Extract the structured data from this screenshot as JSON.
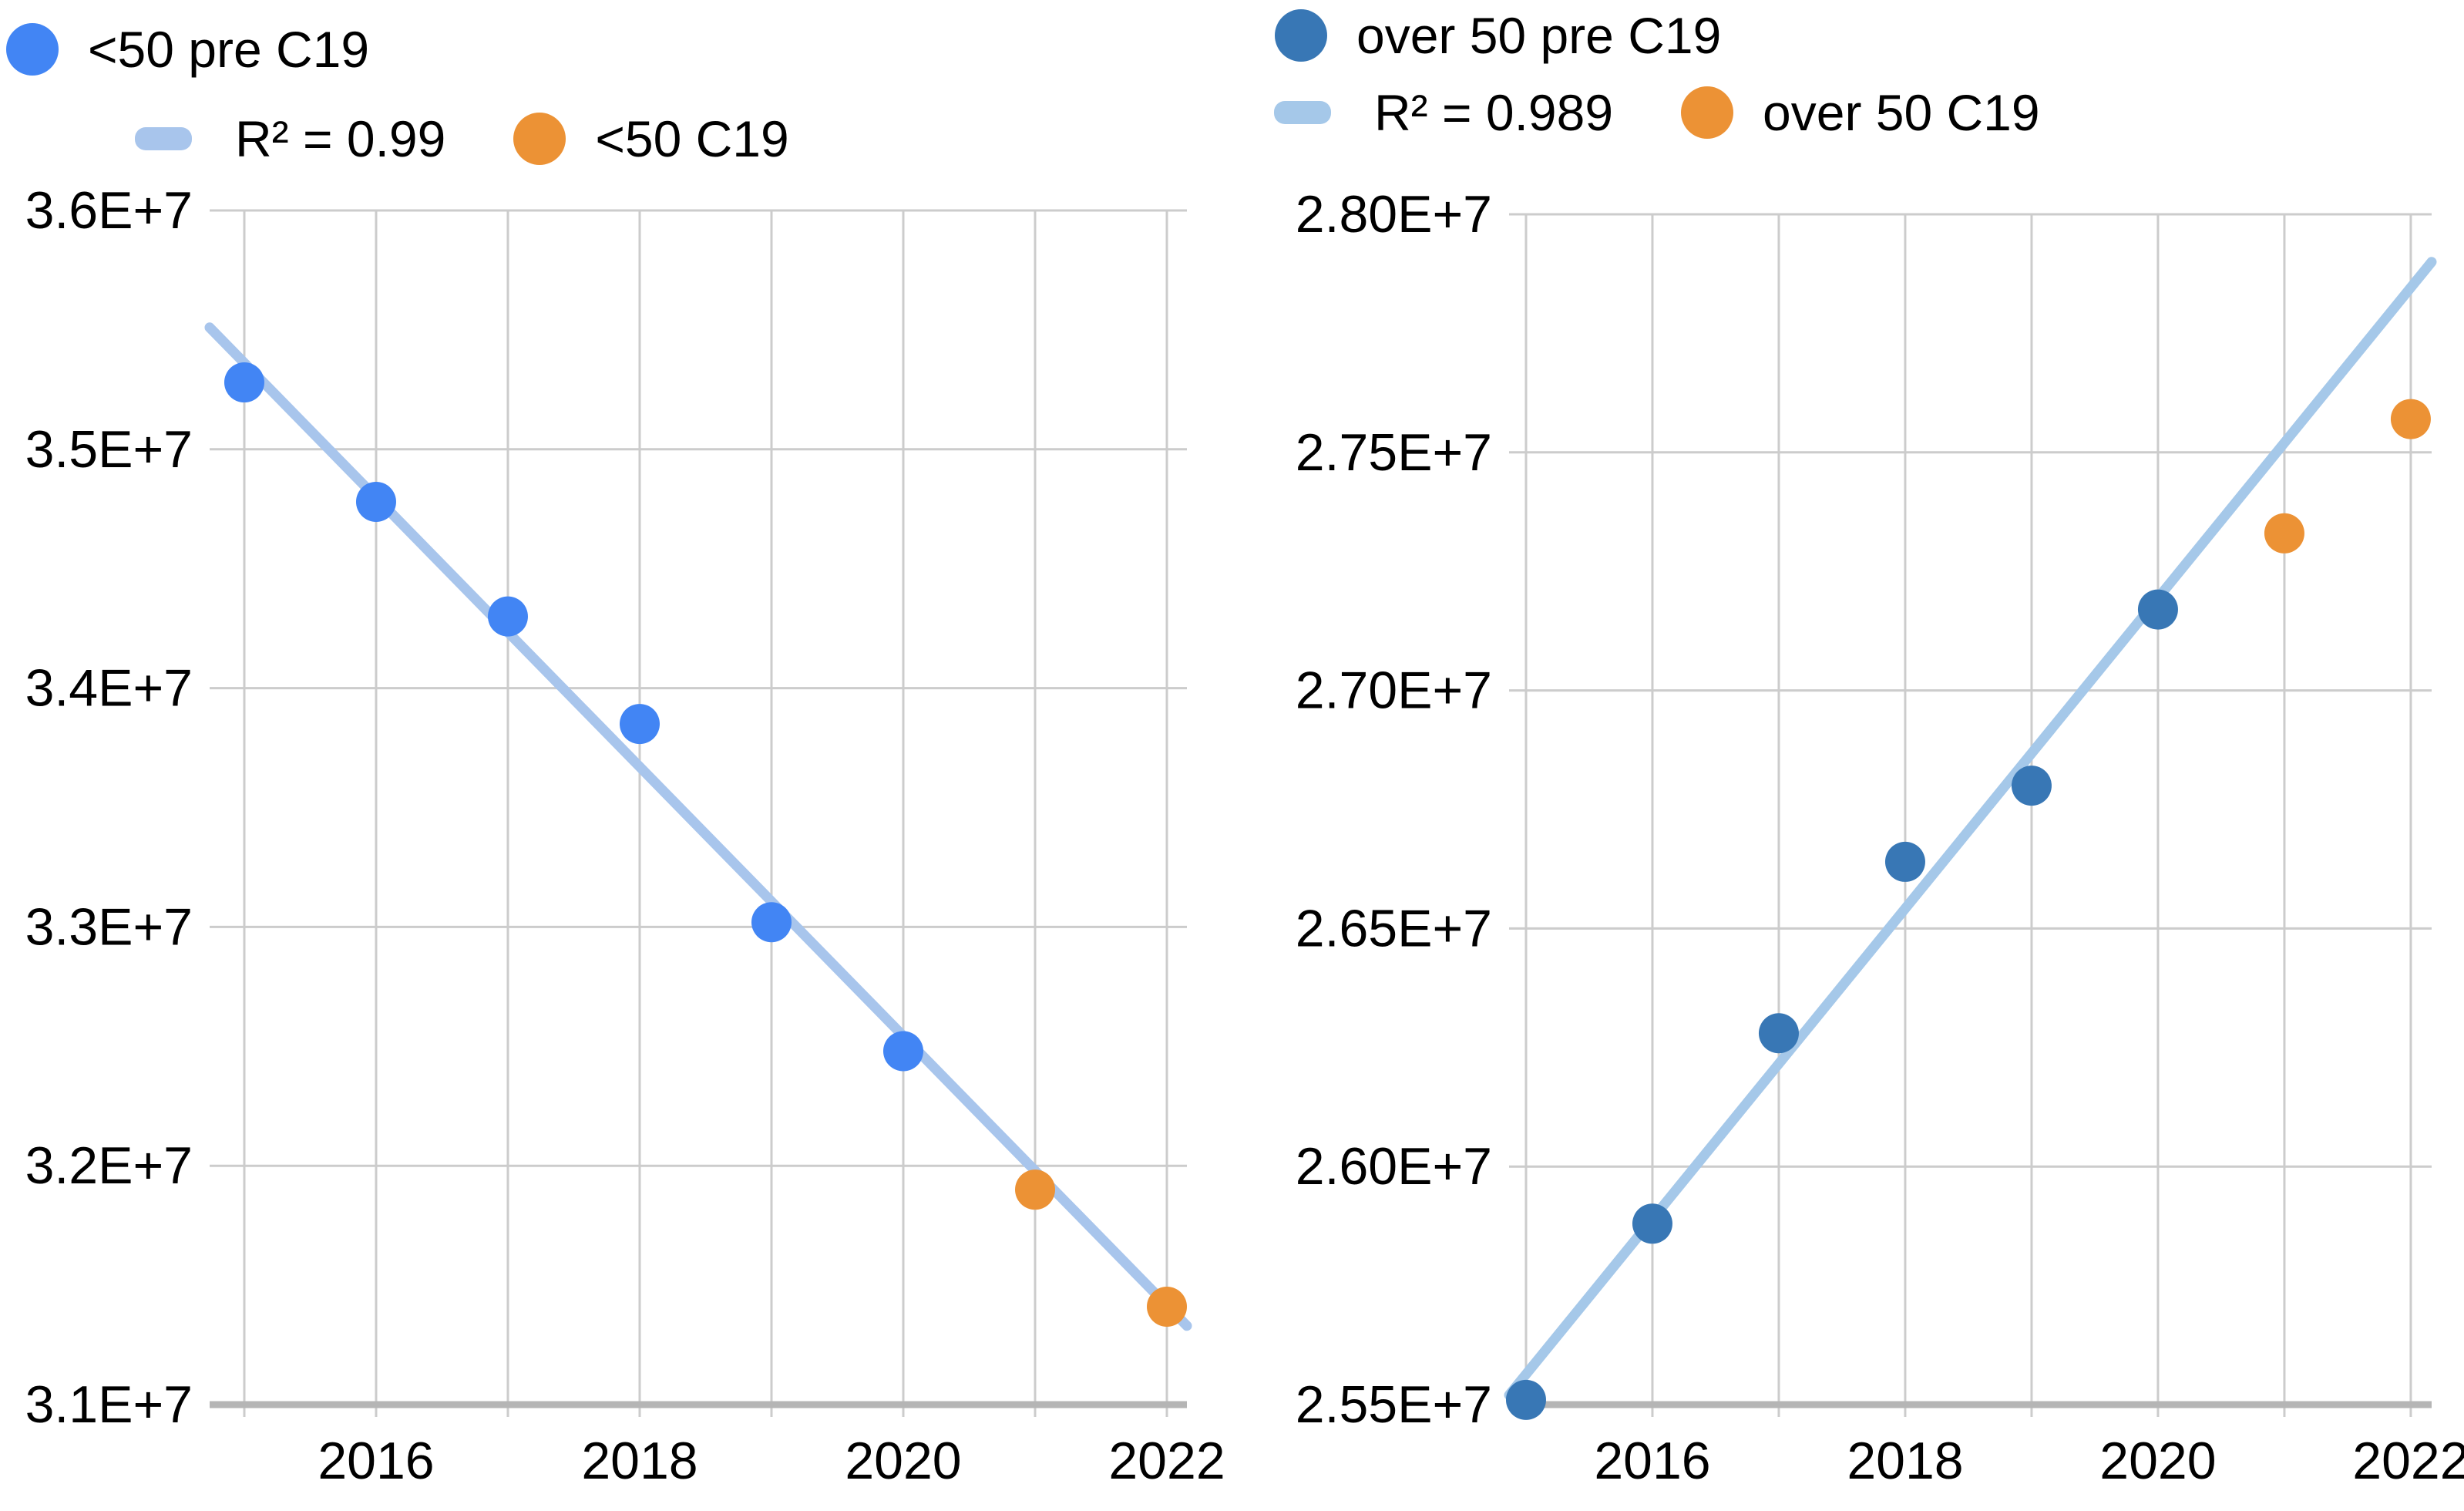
{
  "colors": {
    "grid": "#cccccc",
    "axis_base": "#b5b5b5",
    "text": "#000000",
    "left_series": "#4285f4",
    "right_series": "#3877b5",
    "c19_series": "#ec9235",
    "trend_left": "#a8c5ec",
    "trend_right": "#a5c8e9"
  },
  "chart_data": [
    {
      "type": "scatter",
      "name": "under-50-chart",
      "title": "",
      "xlabel": "",
      "ylabel": "",
      "legend_position": "top",
      "grid": true,
      "legend": [
        {
          "kind": "dot",
          "color_key": "left_series",
          "label": "<50 pre C19"
        },
        {
          "kind": "line",
          "color_key": "trend_left",
          "label": "R² = 0.99"
        },
        {
          "kind": "dot",
          "color_key": "c19_series",
          "label": "<50 C19"
        }
      ],
      "xlim": [
        2014.737,
        2022.152
      ],
      "ylim": [
        31000000,
        36000000
      ],
      "xgrid": [
        2015,
        2016,
        2017,
        2018,
        2019,
        2020,
        2021,
        2022
      ],
      "xticks": [
        {
          "v": 2016,
          "label": "2016"
        },
        {
          "v": 2018,
          "label": "2018"
        },
        {
          "v": 2020,
          "label": "2020"
        },
        {
          "v": 2022,
          "label": "2022"
        }
      ],
      "yticks": [
        {
          "v": 36000000,
          "label": "3.6E+7"
        },
        {
          "v": 35000000,
          "label": "3.5E+7"
        },
        {
          "v": 34000000,
          "label": "3.4E+7"
        },
        {
          "v": 33000000,
          "label": "3.3E+7"
        },
        {
          "v": 32000000,
          "label": "3.2E+7"
        },
        {
          "v": 31000000,
          "label": "3.1E+7"
        }
      ],
      "series": [
        {
          "name": "<50 pre C19",
          "color_key": "left_series",
          "x": [
            2015,
            2016,
            2017,
            2018,
            2019,
            2020
          ],
          "values": [
            35280000,
            34780000,
            34300000,
            33850000,
            33020000,
            32480000
          ]
        },
        {
          "name": "<50 C19",
          "color_key": "c19_series",
          "x": [
            2021,
            2022
          ],
          "values": [
            31900000,
            31410000
          ]
        },
        {
          "name": "R² = 0.99",
          "kind": "trendline",
          "color_key": "trend_left",
          "x": [
            2014.737,
            2022.152
          ],
          "values": [
            35510000,
            31330000
          ]
        }
      ]
    },
    {
      "type": "scatter",
      "name": "over-50-chart",
      "title": "",
      "xlabel": "",
      "ylabel": "",
      "legend_position": "top",
      "grid": true,
      "legend": [
        {
          "kind": "dot",
          "color_key": "right_series",
          "label": "over 50 pre C19"
        },
        {
          "kind": "line",
          "color_key": "trend_right",
          "label": "R² = 0.989"
        },
        {
          "kind": "dot",
          "color_key": "c19_series",
          "label": "over 50 C19"
        }
      ],
      "xlim": [
        2014.866,
        2022.165
      ],
      "ylim": [
        25500000,
        28000000
      ],
      "xgrid": [
        2015,
        2016,
        2017,
        2018,
        2019,
        2020,
        2021,
        2022
      ],
      "xticks": [
        {
          "v": 2016,
          "label": "2016"
        },
        {
          "v": 2018,
          "label": "2018"
        },
        {
          "v": 2020,
          "label": "2020"
        },
        {
          "v": 2022,
          "label": "2022"
        }
      ],
      "yticks": [
        {
          "v": 28000000,
          "label": "2.80E+7"
        },
        {
          "v": 27500000,
          "label": "2.75E+7"
        },
        {
          "v": 27000000,
          "label": "2.70E+7"
        },
        {
          "v": 26500000,
          "label": "2.65E+7"
        },
        {
          "v": 26000000,
          "label": "2.60E+7"
        },
        {
          "v": 25500000,
          "label": "2.55E+7"
        }
      ],
      "series": [
        {
          "name": "over 50 pre C19",
          "color_key": "right_series",
          "x": [
            2015,
            2016,
            2017,
            2018,
            2019,
            2020
          ],
          "values": [
            25510000,
            25880000,
            26280000,
            26640000,
            26800000,
            27170000
          ]
        },
        {
          "name": "over 50 C19",
          "color_key": "c19_series",
          "x": [
            2021,
            2022
          ],
          "values": [
            27330000,
            27570000
          ]
        },
        {
          "name": "R² = 0.989",
          "kind": "trendline",
          "color_key": "trend_right",
          "x": [
            2014.866,
            2022.165
          ],
          "values": [
            25520000,
            27900000
          ]
        }
      ]
    }
  ]
}
